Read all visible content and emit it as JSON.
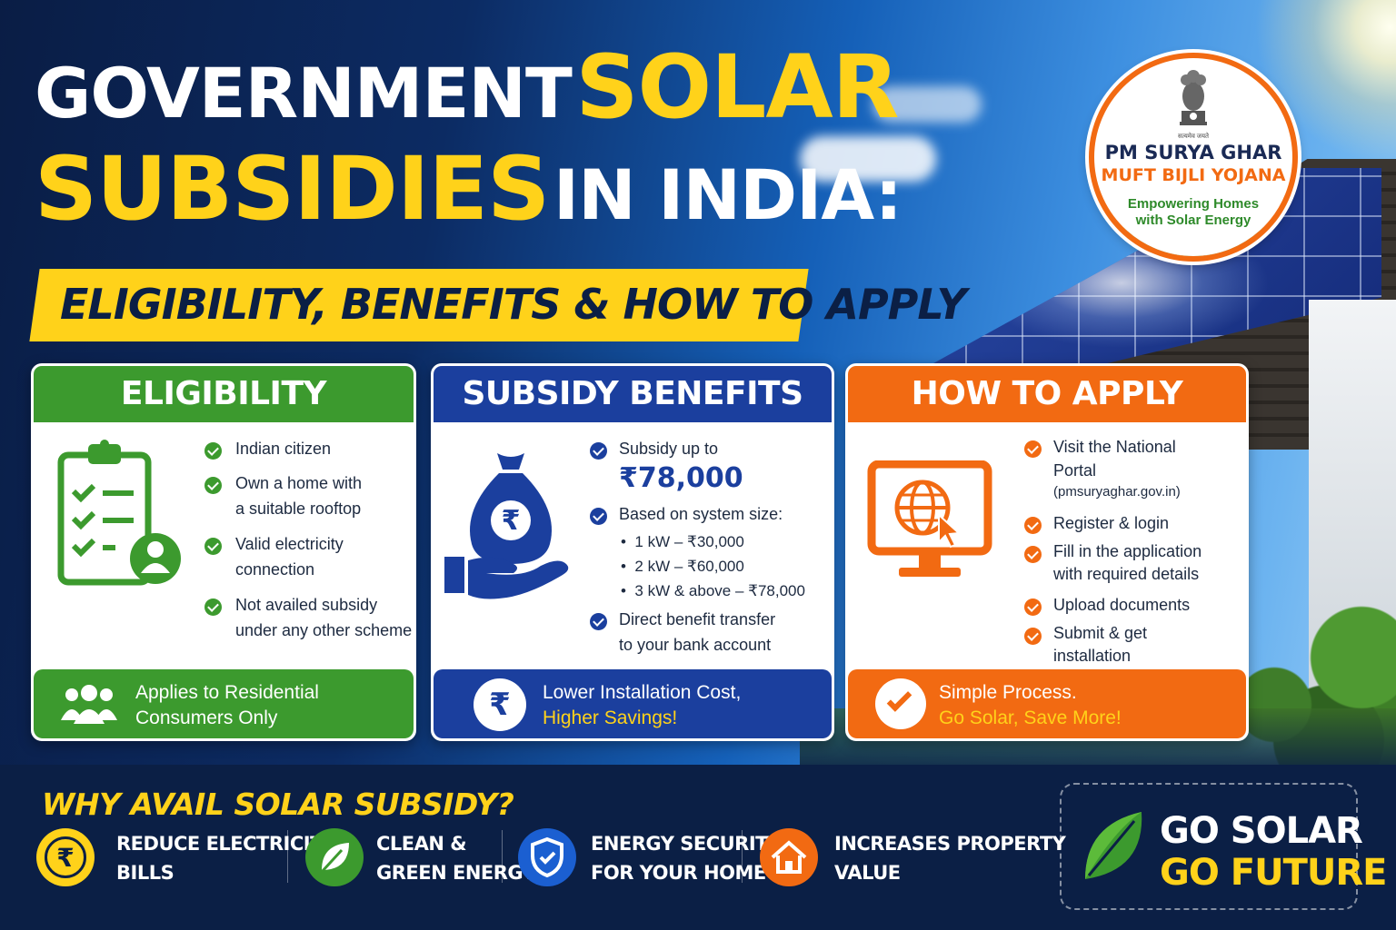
{
  "title": {
    "line1_white": "GOVERNMENT",
    "line1_yellow": "SOLAR",
    "line2_yellow": "SUBSIDIES",
    "line2_white": "IN INDIA:",
    "subtitle": "ELIGIBILITY, BENEFITS & HOW TO APPLY"
  },
  "badge": {
    "motto": "सत्यमेव जयते",
    "line1": "PM SURYA GHAR",
    "line2": "MUFT BIJLI YOJANA",
    "line3a": "Empowering Homes",
    "line3b": "with Solar Energy"
  },
  "eligibility": {
    "heading": "ELIGIBILITY",
    "items": [
      {
        "l1": "Indian citizen",
        "l2": ""
      },
      {
        "l1": "Own a home with",
        "l2": "a suitable rooftop"
      },
      {
        "l1": "Valid electricity",
        "l2": "connection"
      },
      {
        "l1": "Not availed subsidy",
        "l2": "under any other scheme"
      }
    ],
    "footer_l1": "Applies to Residential",
    "footer_l2": "Consumers Only"
  },
  "benefits": {
    "heading": "SUBSIDY BENEFITS",
    "item1": "Subsidy up to",
    "amount": "₹78,000",
    "item2": "Based on system size:",
    "sizes": [
      "1 kW – ₹30,000",
      "2 kW – ₹60,000",
      "3 kW & above – ₹78,000"
    ],
    "item3_l1": "Direct benefit transfer",
    "item3_l2": "to your bank account",
    "footer_l1": "Lower Installation Cost,",
    "footer_l2": "Higher Savings!",
    "rupee_symbol": "₹"
  },
  "apply": {
    "heading": "HOW TO APPLY",
    "item1_l1": "Visit the National",
    "item1_l2": "Portal",
    "item1_l3": "(pmsuryaghar.gov.in)",
    "item2": "Register & login",
    "item3_l1": "Fill in the application",
    "item3_l2": "with required details",
    "item4": "Upload documents",
    "item5_l1": "Submit & get",
    "item5_l2": "installation",
    "footer_l1": "Simple Process.",
    "footer_l2": "Go Solar, Save More!"
  },
  "why": {
    "heading": "WHY AVAIL SOLAR SUBSIDY?",
    "benefits": [
      {
        "l1": "REDUCE ELECTRICITY",
        "l2": "BILLS",
        "icon": "rupee-cycle-icon"
      },
      {
        "l1": "CLEAN &",
        "l2": "GREEN ENERGY",
        "icon": "leaf-icon"
      },
      {
        "l1": "ENERGY SECURITY",
        "l2": "FOR YOUR HOME",
        "icon": "shield-icon"
      },
      {
        "l1": "INCREASES PROPERTY",
        "l2": "VALUE",
        "icon": "house-icon"
      }
    ]
  },
  "cta": {
    "line1": "GO SOLAR",
    "line2": "GO FUTURE"
  },
  "colors": {
    "navy": "#0b1f45",
    "yellow": "#ffd21a",
    "green": "#3c9a2e",
    "blue": "#1b3f9e",
    "orange": "#f26a12"
  }
}
